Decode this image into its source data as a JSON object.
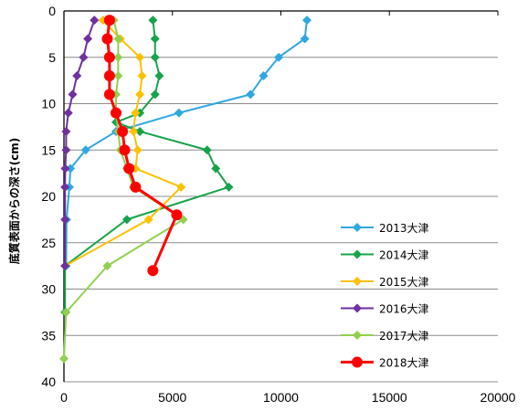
{
  "chart_data": {
    "type": "line",
    "ylabel": "底質表面からの深さ(cm)",
    "xlabel": "",
    "xlim": [
      0,
      20000
    ],
    "ylim": [
      40,
      0
    ],
    "y_inverted": true,
    "grid": "horizontal",
    "legend_position": "right",
    "x_ticks": [
      "0",
      "5000",
      "10000",
      "15000",
      "20000"
    ],
    "y_ticks": [
      "0",
      "5",
      "10",
      "15",
      "20",
      "25",
      "30",
      "35",
      "40"
    ],
    "series": [
      {
        "name": "2013大津",
        "color": "#2fa8e0",
        "marker": "diamond",
        "points": [
          [
            11200,
            1
          ],
          [
            11100,
            3
          ],
          [
            9900,
            5
          ],
          [
            9200,
            7
          ],
          [
            8600,
            9
          ],
          [
            5300,
            11
          ],
          [
            2400,
            13
          ],
          [
            1000,
            15
          ],
          [
            300,
            17
          ],
          [
            250,
            19
          ],
          [
            120,
            22.5
          ],
          [
            100,
            27.5
          ]
        ]
      },
      {
        "name": "2014大津",
        "color": "#17a34a",
        "marker": "diamond",
        "points": [
          [
            4100,
            1
          ],
          [
            4200,
            3
          ],
          [
            4200,
            5
          ],
          [
            4400,
            7
          ],
          [
            4200,
            9
          ],
          [
            3500,
            11
          ],
          [
            2400,
            12
          ],
          [
            3500,
            13
          ],
          [
            6600,
            15
          ],
          [
            7000,
            17
          ],
          [
            7600,
            19
          ],
          [
            2900,
            22.5
          ],
          [
            50,
            27.5
          ],
          [
            50,
            32.5
          ]
        ]
      },
      {
        "name": "2015大津",
        "color": "#ffc000",
        "marker": "diamond",
        "points": [
          [
            1800,
            1
          ],
          [
            2600,
            3
          ],
          [
            3500,
            5
          ],
          [
            3600,
            7
          ],
          [
            3500,
            9
          ],
          [
            3300,
            11
          ],
          [
            3200,
            13
          ],
          [
            3400,
            15
          ],
          [
            3300,
            17
          ],
          [
            5400,
            19
          ],
          [
            3900,
            22.5
          ],
          [
            50,
            27.5
          ]
        ]
      },
      {
        "name": "2016大津",
        "color": "#7030a0",
        "marker": "diamond",
        "points": [
          [
            1400,
            1
          ],
          [
            1100,
            3
          ],
          [
            900,
            5
          ],
          [
            600,
            7
          ],
          [
            400,
            9
          ],
          [
            200,
            11
          ],
          [
            100,
            13
          ],
          [
            100,
            15
          ],
          [
            60,
            17
          ],
          [
            50,
            19
          ],
          [
            50,
            22.5
          ],
          [
            50,
            27.5
          ]
        ]
      },
      {
        "name": "2017大津",
        "color": "#92d050",
        "marker": "diamond",
        "points": [
          [
            2300,
            1
          ],
          [
            2500,
            3
          ],
          [
            2500,
            5
          ],
          [
            2500,
            7
          ],
          [
            2400,
            9
          ],
          [
            2400,
            11
          ],
          [
            2500,
            13
          ],
          [
            2600,
            15
          ],
          [
            2900,
            17
          ],
          [
            3200,
            19
          ],
          [
            5500,
            22.5
          ],
          [
            2000,
            27.5
          ],
          [
            100,
            32.5
          ],
          [
            0,
            37.5
          ]
        ]
      },
      {
        "name": "2018大津",
        "color": "#ff0000",
        "marker": "circle",
        "points": [
          [
            2100,
            1
          ],
          [
            2000,
            3
          ],
          [
            2100,
            5
          ],
          [
            2100,
            7
          ],
          [
            2100,
            9
          ],
          [
            2400,
            11
          ],
          [
            2700,
            13
          ],
          [
            2800,
            15
          ],
          [
            3000,
            17
          ],
          [
            3300,
            19
          ],
          [
            5200,
            22
          ],
          [
            4100,
            28
          ]
        ]
      }
    ]
  }
}
